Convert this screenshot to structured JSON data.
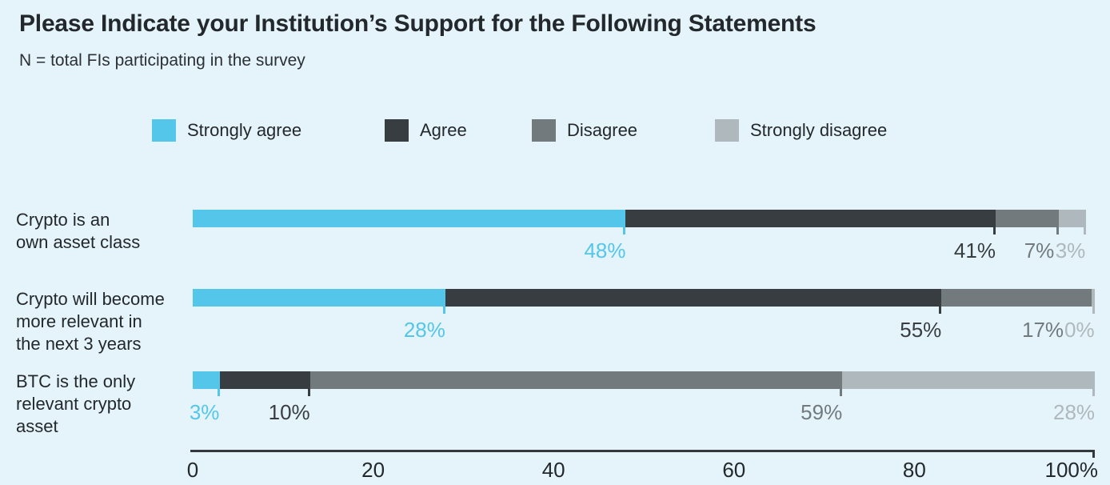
{
  "title": "Please Indicate your Institution’s Support for the Following Statements",
  "subtitle": "N = total FIs participating in the survey",
  "colors": {
    "background": "#e5f4fa",
    "strongly_agree": "#54c6e9",
    "agree": "#383d42",
    "disagree": "#727a7e",
    "strongly_disagree": "#afb8bc",
    "axis": "#33383d",
    "title_text": "#23282c",
    "subtitle_text": "#2b3036"
  },
  "legend": {
    "items": [
      {
        "label": "Strongly agree",
        "color_key": "strongly_agree"
      },
      {
        "label": "Agree",
        "color_key": "agree"
      },
      {
        "label": "Disagree",
        "color_key": "disagree"
      },
      {
        "label": "Strongly disagree",
        "color_key": "strongly_disagree"
      }
    ]
  },
  "chart_data": {
    "type": "bar",
    "orientation": "horizontal",
    "stacked": true,
    "unit": "%",
    "xlim": [
      0,
      100
    ],
    "grid": false,
    "legend_position": "top",
    "x_tick_values": [
      0,
      20,
      40,
      60,
      80,
      100
    ],
    "x_tick_labels": [
      "0",
      "20",
      "40",
      "60",
      "80",
      "100%"
    ],
    "categories": [
      "Crypto is an own asset class",
      "Crypto will become more relevant in the next 3 years",
      "BTC is the only relevant crypto asset"
    ],
    "category_label_lines": [
      [
        "Crypto is an",
        "own asset class"
      ],
      [
        "Crypto will become",
        "more relevant in",
        "the next 3 years"
      ],
      [
        "BTC is the only",
        "relevant crypto",
        "asset"
      ]
    ],
    "series": [
      {
        "name": "Strongly agree",
        "color_key": "strongly_agree",
        "values": [
          48,
          28,
          3
        ]
      },
      {
        "name": "Agree",
        "color_key": "agree",
        "values": [
          41,
          55,
          10
        ]
      },
      {
        "name": "Disagree",
        "color_key": "disagree",
        "values": [
          7,
          17,
          59
        ]
      },
      {
        "name": "Strongly disagree",
        "color_key": "strongly_disagree",
        "values": [
          3,
          0,
          28
        ]
      }
    ],
    "value_labels": [
      [
        "48%",
        "41%",
        "7%",
        "3%"
      ],
      [
        "28%",
        "55%",
        "17%",
        "0%"
      ],
      [
        "3%",
        "10%",
        "59%",
        "28%"
      ]
    ]
  }
}
